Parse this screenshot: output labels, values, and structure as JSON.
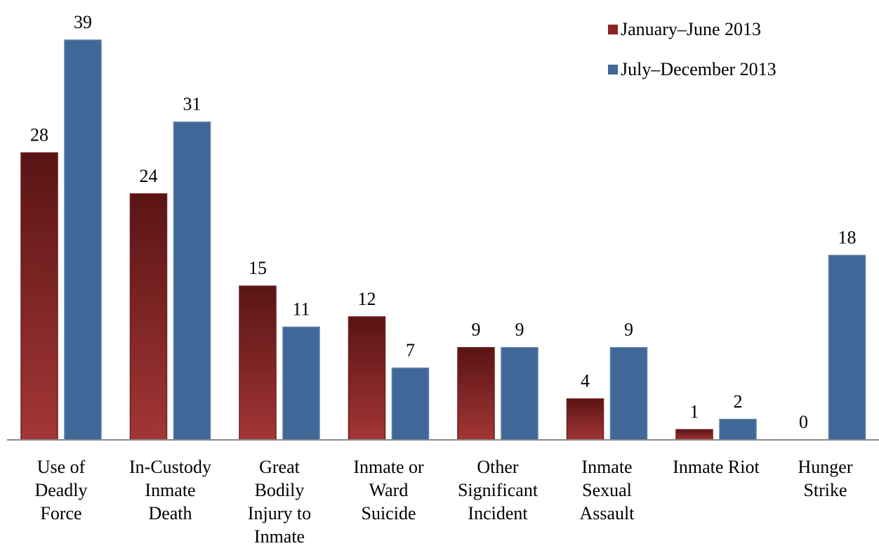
{
  "chart_data": {
    "type": "bar",
    "categories": [
      [
        "Use of",
        "Deadly",
        "Force"
      ],
      [
        "In-Custody",
        "Inmate",
        "Death"
      ],
      [
        "Great",
        "Bodily",
        "Injury to",
        "Inmate"
      ],
      [
        "Inmate or",
        "Ward",
        "Suicide"
      ],
      [
        "Other",
        "Significant",
        "Incident"
      ],
      [
        "Inmate",
        "Sexual",
        "Assault"
      ],
      [
        "Inmate Riot"
      ],
      [
        "Hunger",
        "Strike"
      ]
    ],
    "series": [
      {
        "name": "January–June 2013",
        "values": [
          28,
          24,
          15,
          12,
          9,
          4,
          1,
          0
        ],
        "color": "#8b2323"
      },
      {
        "name": "July–December 2013",
        "values": [
          39,
          31,
          11,
          7,
          9,
          9,
          2,
          18
        ],
        "color": "#3f6798"
      }
    ],
    "ylim": [
      0,
      39
    ],
    "data_labels": true,
    "legend_position": "top-right",
    "grid": false
  }
}
